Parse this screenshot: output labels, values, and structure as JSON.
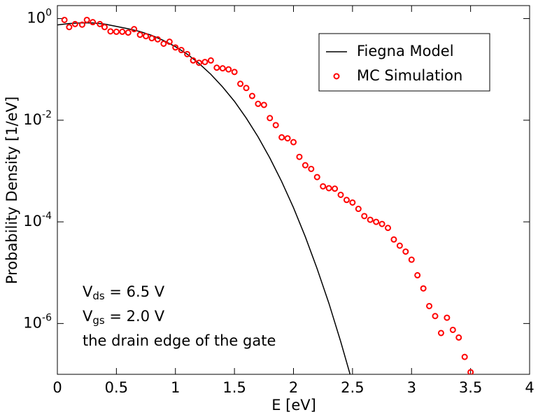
{
  "chart_data": {
    "type": "line",
    "xlabel": "E [eV]",
    "ylabel": "Probability Density [1/eV]",
    "xlim": [
      0,
      4
    ],
    "xticks": [
      0,
      0.5,
      1,
      1.5,
      2,
      2.5,
      3,
      3.5,
      4
    ],
    "ylim": [
      1e-07,
      1.8
    ],
    "yticks": [
      {
        "value": 1,
        "label": "10^0"
      },
      {
        "value": 0.01,
        "label": "10^-2"
      },
      {
        "value": 0.0001,
        "label": "10^-4"
      },
      {
        "value": 1e-06,
        "label": "10^-6"
      }
    ],
    "log_y": true,
    "grid": false,
    "legend": "upper right",
    "annotations": [
      "Vds = 6.5 V",
      "Vgs = 2.0 V",
      "the drain edge of the gate"
    ],
    "series": [
      {
        "name": "Fiegna Model",
        "color": "#000000",
        "marker": "line",
        "x": [
          0,
          0.1,
          0.2,
          0.3,
          0.4,
          0.5,
          0.6,
          0.7,
          0.8,
          0.9,
          1.0,
          1.1,
          1.2,
          1.3,
          1.4,
          1.5,
          1.6,
          1.7,
          1.8,
          1.9,
          2.0,
          2.1,
          2.2,
          2.3,
          2.4,
          2.5
        ],
        "values": [
          0.75,
          0.8,
          0.82,
          0.82,
          0.78,
          0.7,
          0.63,
          0.556,
          0.466,
          0.37,
          0.28,
          0.199,
          0.131,
          0.08,
          0.045,
          0.0235,
          0.011,
          0.0047,
          0.0018,
          0.00062,
          0.00019,
          5.1e-05,
          1.2e-05,
          2.5e-06,
          4.4e-07,
          6.8e-08
        ]
      },
      {
        "name": "MC Simulation",
        "color": "#ff0000",
        "marker": "circle",
        "x": [
          0.06,
          0.1,
          0.15,
          0.21,
          0.25,
          0.3,
          0.36,
          0.4,
          0.45,
          0.5,
          0.55,
          0.6,
          0.65,
          0.7,
          0.75,
          0.8,
          0.85,
          0.9,
          0.95,
          1.0,
          1.05,
          1.1,
          1.15,
          1.2,
          1.25,
          1.3,
          1.35,
          1.4,
          1.45,
          1.5,
          1.55,
          1.6,
          1.65,
          1.7,
          1.75,
          1.8,
          1.85,
          1.9,
          1.95,
          2.0,
          2.05,
          2.1,
          2.15,
          2.2,
          2.25,
          2.3,
          2.35,
          2.4,
          2.45,
          2.5,
          2.55,
          2.6,
          2.65,
          2.7,
          2.75,
          2.8,
          2.85,
          2.9,
          2.95,
          3.0,
          3.05,
          3.1,
          3.15,
          3.2,
          3.25,
          3.3,
          3.35,
          3.4,
          3.45,
          3.5
        ],
        "values": [
          0.94,
          0.68,
          0.78,
          0.76,
          0.94,
          0.85,
          0.78,
          0.68,
          0.56,
          0.55,
          0.55,
          0.53,
          0.62,
          0.48,
          0.45,
          0.41,
          0.39,
          0.32,
          0.35,
          0.27,
          0.24,
          0.2,
          0.15,
          0.135,
          0.14,
          0.15,
          0.108,
          0.105,
          0.1,
          0.089,
          0.052,
          0.043,
          0.03,
          0.021,
          0.02,
          0.011,
          0.008,
          0.0046,
          0.0044,
          0.0037,
          0.0019,
          0.0013,
          0.0011,
          0.00076,
          0.0005,
          0.00046,
          0.00045,
          0.00034,
          0.00027,
          0.00024,
          0.00018,
          0.00013,
          0.00011,
          0.0001,
          9.1e-05,
          7.6e-05,
          4.5e-05,
          3.4e-05,
          2.6e-05,
          1.8e-05,
          8.9e-06,
          4.9e-06,
          2.2e-06,
          1.4e-06,
          6.5e-07,
          1.3e-06,
          7.5e-07,
          5.3e-07,
          2.2e-07,
          1.1e-07
        ]
      }
    ]
  }
}
